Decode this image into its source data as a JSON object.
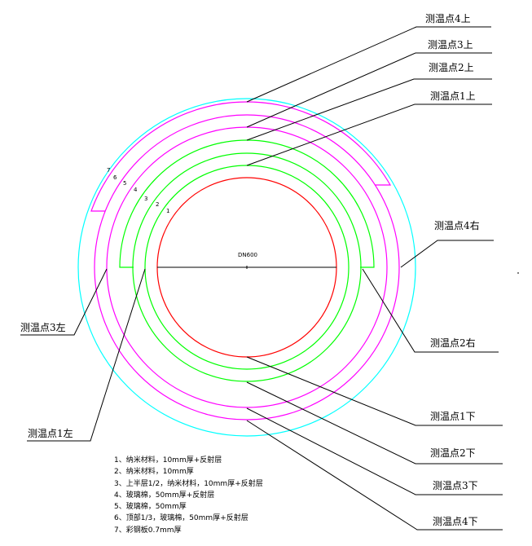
{
  "diagram": {
    "pipe_label": "DN600",
    "layer_numbers": [
      "1",
      "2",
      "3",
      "4",
      "5",
      "6",
      "7"
    ],
    "callouts": {
      "top4": "测温点4上",
      "top3": "测温点3上",
      "top2": "测温点2上",
      "top1": "测温点1上",
      "right4": "测温点4右",
      "right2": "测温点2右",
      "left3": "测温点3左",
      "left1": "测温点1左",
      "bottom1": "测温点1下",
      "bottom2": "测温点2下",
      "bottom3": "测温点3下",
      "bottom4": "测温点4下"
    },
    "legend": [
      "1、纳米材料，10mm厚+反射层",
      "2、纳米材料，10mm厚",
      "3、上半层1/2，纳米材料，10mm厚+反射层",
      "4、玻璃棉，50mm厚+反射层",
      "5、玻璃棉，50mm厚",
      "6、顶部1/3，玻璃棉，50mm厚+反射层",
      "7、彩钢板0.7mm厚"
    ],
    "colors": {
      "pipe": "#ff0000",
      "nano": "#00ff00",
      "glasswool": "#ff00ff",
      "steel": "#00ffff",
      "lines": "#000000"
    }
  }
}
